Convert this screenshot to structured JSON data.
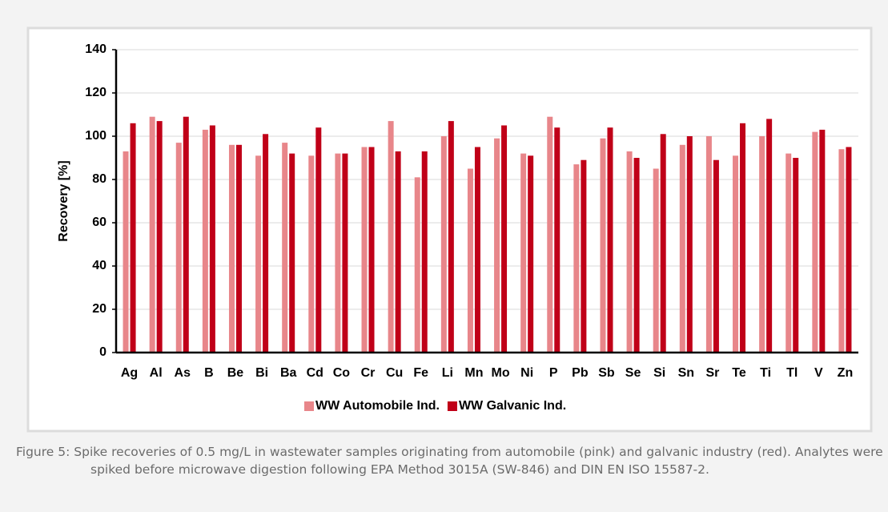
{
  "chart_data": {
    "type": "bar",
    "categories": [
      "Ag",
      "Al",
      "As",
      "B",
      "Be",
      "Bi",
      "Ba",
      "Cd",
      "Co",
      "Cr",
      "Cu",
      "Fe",
      "Li",
      "Mn",
      "Mo",
      "Ni",
      "P",
      "Pb",
      "Sb",
      "Se",
      "Si",
      "Sn",
      "Sr",
      "Te",
      "Ti",
      "Tl",
      "V",
      "Zn"
    ],
    "series": [
      {
        "name": "WW Automobile Ind.",
        "color": "#e8868a",
        "values": [
          93,
          109,
          97,
          103,
          96,
          91,
          97,
          91,
          92,
          95,
          107,
          81,
          100,
          85,
          99,
          92,
          109,
          87,
          99,
          93,
          85,
          96,
          100,
          91,
          100,
          92,
          102,
          94
        ]
      },
      {
        "name": "WW Galvanic Ind.",
        "color": "#c00018",
        "values": [
          106,
          107,
          109,
          105,
          96,
          101,
          92,
          104,
          92,
          95,
          93,
          93,
          107,
          95,
          105,
          91,
          104,
          89,
          104,
          90,
          101,
          100,
          89,
          106,
          108,
          90,
          103,
          95
        ]
      }
    ],
    "y_label": "Recovery [%]",
    "ylim": [
      0,
      140
    ],
    "yticks": [
      0,
      20,
      40,
      60,
      80,
      100,
      120,
      140
    ],
    "grid": true,
    "legend": "bottom",
    "caption": "Figure 5: Spike recoveries of 0.5 mg/L in wastewater samples originating from automobile (pink) and galvanic industry (red). Analytes were spiked before microwave digestion following EPA Method 3015A (SW-846) and DIN EN ISO 15587-2."
  }
}
